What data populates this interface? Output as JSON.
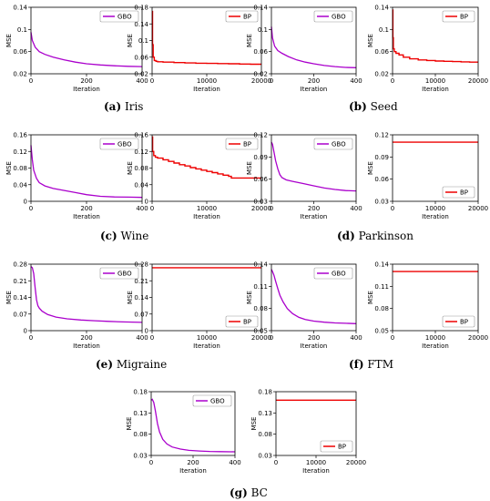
{
  "xlabel": "Iteration",
  "ylabel": "MSE",
  "colors": {
    "GBO": "#aa00cc",
    "BP": "#ee0000"
  },
  "captions": [
    {
      "letter": "(a)",
      "name": "Iris"
    },
    {
      "letter": "(b)",
      "name": "Seed"
    },
    {
      "letter": "(c)",
      "name": "Wine"
    },
    {
      "letter": "(d)",
      "name": "Parkinson"
    },
    {
      "letter": "(e)",
      "name": "Migraine"
    },
    {
      "letter": "(f)",
      "name": "FTM"
    },
    {
      "letter": "(g)",
      "name": "BC"
    }
  ],
  "chart_data": [
    {
      "type": "line",
      "dataset": "Iris",
      "legend_pos": "top-right",
      "xlim": [
        0,
        400
      ],
      "ylim": [
        0.02,
        0.14
      ],
      "xticks": [
        0,
        200,
        400
      ],
      "yticks": [
        "0.02",
        "0.06",
        "0.1",
        "0.14"
      ],
      "series": [
        {
          "name": "GBO",
          "x": [
            0,
            5,
            15,
            30,
            50,
            80,
            120,
            160,
            200,
            250,
            300,
            350,
            400
          ],
          "y": [
            0.095,
            0.08,
            0.068,
            0.06,
            0.055,
            0.05,
            0.045,
            0.041,
            0.038,
            0.036,
            0.0345,
            0.0335,
            0.033
          ]
        }
      ]
    },
    {
      "type": "line",
      "dataset": "Iris",
      "legend_pos": "top-right",
      "xlim": [
        0,
        20000
      ],
      "ylim": [
        0.02,
        0.18
      ],
      "xticks": [
        0,
        10000,
        20000
      ],
      "yticks": [
        "0.02",
        "0.06",
        "0.1",
        "0.14",
        "0.18"
      ],
      "series": [
        {
          "name": "BP",
          "x": [
            0,
            80,
            200,
            400,
            700,
            1000,
            2000,
            4000,
            6000,
            8000,
            10000,
            12000,
            14000,
            16000,
            18000,
            20000
          ],
          "y": [
            0.17,
            0.09,
            0.06,
            0.052,
            0.05,
            0.049,
            0.048,
            0.047,
            0.046,
            0.0455,
            0.045,
            0.0445,
            0.044,
            0.0435,
            0.043,
            0.043
          ]
        }
      ]
    },
    {
      "type": "line",
      "dataset": "Seed",
      "legend_pos": "top-right",
      "xlim": [
        0,
        400
      ],
      "ylim": [
        0.02,
        0.14
      ],
      "xticks": [
        0,
        200,
        400
      ],
      "yticks": [
        "0.02",
        "0.06",
        "0.1",
        "0.14"
      ],
      "series": [
        {
          "name": "GBO",
          "x": [
            0,
            5,
            15,
            30,
            50,
            80,
            120,
            160,
            200,
            250,
            300,
            350,
            400
          ],
          "y": [
            0.105,
            0.085,
            0.07,
            0.062,
            0.057,
            0.051,
            0.045,
            0.041,
            0.038,
            0.035,
            0.033,
            0.0315,
            0.031
          ]
        }
      ]
    },
    {
      "type": "line",
      "dataset": "Seed",
      "legend_pos": "top-right",
      "xlim": [
        0,
        20000
      ],
      "ylim": [
        0.02,
        0.14
      ],
      "xticks": [
        0,
        10000,
        20000
      ],
      "yticks": [
        "0.02",
        "0.06",
        "0.1",
        "0.14"
      ],
      "series": [
        {
          "name": "BP",
          "x": [
            0,
            80,
            200,
            400,
            800,
            1500,
            2500,
            4000,
            6000,
            8000,
            10000,
            12000,
            14000,
            16000,
            18000,
            20000
          ],
          "y": [
            0.135,
            0.085,
            0.065,
            0.06,
            0.057,
            0.054,
            0.05,
            0.047,
            0.045,
            0.044,
            0.043,
            0.0425,
            0.042,
            0.0415,
            0.041,
            0.041
          ]
        }
      ]
    },
    {
      "type": "line",
      "dataset": "Wine",
      "legend_pos": "top-right",
      "xlim": [
        0,
        400
      ],
      "ylim": [
        0,
        0.16
      ],
      "xticks": [
        0,
        200,
        400
      ],
      "yticks": [
        "0",
        "0.04",
        "0.08",
        "0.12",
        "0.16"
      ],
      "series": [
        {
          "name": "GBO",
          "x": [
            0,
            5,
            10,
            20,
            30,
            50,
            80,
            120,
            160,
            200,
            250,
            300,
            350,
            400
          ],
          "y": [
            0.135,
            0.1,
            0.075,
            0.055,
            0.045,
            0.037,
            0.031,
            0.026,
            0.021,
            0.016,
            0.012,
            0.0105,
            0.01,
            0.0095
          ]
        }
      ]
    },
    {
      "type": "line",
      "dataset": "Wine",
      "legend_pos": "top-right",
      "xlim": [
        0,
        20000
      ],
      "ylim": [
        0,
        0.16
      ],
      "xticks": [
        0,
        10000,
        20000
      ],
      "yticks": [
        "0",
        "0.04",
        "0.08",
        "0.12",
        "0.16"
      ],
      "series": [
        {
          "name": "BP",
          "x": [
            0,
            100,
            300,
            600,
            1000,
            2000,
            3000,
            4000,
            5000,
            6000,
            7000,
            8000,
            9000,
            10000,
            11000,
            12000,
            13000,
            14000,
            14500,
            16000,
            18000,
            20000
          ],
          "y": [
            0.155,
            0.12,
            0.11,
            0.106,
            0.104,
            0.1,
            0.096,
            0.092,
            0.088,
            0.085,
            0.081,
            0.078,
            0.075,
            0.072,
            0.069,
            0.066,
            0.063,
            0.06,
            0.056,
            0.056,
            0.056,
            0.056
          ]
        }
      ]
    },
    {
      "type": "line",
      "dataset": "Parkinson",
      "legend_pos": "top-right",
      "xlim": [
        0,
        400
      ],
      "ylim": [
        0.03,
        0.12
      ],
      "xticks": [
        0,
        200,
        400
      ],
      "yticks": [
        "0.03",
        "0.06",
        "0.09",
        "0.12"
      ],
      "series": [
        {
          "name": "GBO",
          "x": [
            0,
            5,
            12,
            20,
            30,
            40,
            50,
            70,
            100,
            150,
            200,
            250,
            300,
            350,
            400
          ],
          "y": [
            0.11,
            0.107,
            0.097,
            0.085,
            0.074,
            0.066,
            0.062,
            0.059,
            0.057,
            0.054,
            0.051,
            0.048,
            0.046,
            0.0445,
            0.044
          ]
        }
      ]
    },
    {
      "type": "line",
      "dataset": "Parkinson",
      "legend_pos": "bottom-right",
      "xlim": [
        0,
        20000
      ],
      "ylim": [
        0.03,
        0.12
      ],
      "xticks": [
        0,
        10000,
        20000
      ],
      "yticks": [
        "0.03",
        "0.06",
        "0.09",
        "0.12"
      ],
      "series": [
        {
          "name": "BP",
          "x": [
            0,
            20000
          ],
          "y": [
            0.11,
            0.11
          ]
        }
      ]
    },
    {
      "type": "line",
      "dataset": "Migraine",
      "legend_pos": "top-right",
      "xlim": [
        0,
        400
      ],
      "ylim": [
        0,
        0.28
      ],
      "xticks": [
        0,
        200,
        400
      ],
      "yticks": [
        "0",
        "0.07",
        "0.14",
        "0.21",
        "0.28"
      ],
      "series": [
        {
          "name": "GBO",
          "x": [
            0,
            5,
            10,
            15,
            20,
            25,
            30,
            40,
            60,
            90,
            130,
            180,
            230,
            280,
            330,
            400
          ],
          "y": [
            0.27,
            0.265,
            0.24,
            0.18,
            0.13,
            0.105,
            0.095,
            0.082,
            0.068,
            0.057,
            0.05,
            0.045,
            0.042,
            0.039,
            0.037,
            0.035
          ]
        }
      ]
    },
    {
      "type": "line",
      "dataset": "Migraine",
      "legend_pos": "bottom-right",
      "xlim": [
        0,
        20000
      ],
      "ylim": [
        0,
        0.28
      ],
      "xticks": [
        0,
        10000,
        20000
      ],
      "yticks": [
        "0",
        "0.07",
        "0.14",
        "0.21",
        "0.28"
      ],
      "series": [
        {
          "name": "BP",
          "x": [
            0,
            20000
          ],
          "y": [
            0.265,
            0.265
          ]
        }
      ]
    },
    {
      "type": "line",
      "dataset": "FTM",
      "legend_pos": "top-right",
      "xlim": [
        0,
        400
      ],
      "ylim": [
        0.05,
        0.14
      ],
      "xticks": [
        0,
        200,
        400
      ],
      "yticks": [
        "0.05",
        "0.08",
        "0.11",
        "0.14"
      ],
      "series": [
        {
          "name": "GBO",
          "x": [
            0,
            5,
            12,
            20,
            30,
            40,
            55,
            75,
            100,
            130,
            160,
            200,
            250,
            300,
            350,
            400
          ],
          "y": [
            0.133,
            0.13,
            0.125,
            0.117,
            0.107,
            0.098,
            0.089,
            0.08,
            0.073,
            0.068,
            0.065,
            0.063,
            0.0615,
            0.0605,
            0.06,
            0.0595
          ]
        }
      ]
    },
    {
      "type": "line",
      "dataset": "FTM",
      "legend_pos": "bottom-right",
      "xlim": [
        0,
        20000
      ],
      "ylim": [
        0.05,
        0.14
      ],
      "xticks": [
        0,
        10000,
        20000
      ],
      "yticks": [
        "0.05",
        "0.08",
        "0.11",
        "0.14"
      ],
      "series": [
        {
          "name": "BP",
          "x": [
            0,
            20000
          ],
          "y": [
            0.13,
            0.13
          ]
        }
      ]
    },
    {
      "type": "line",
      "dataset": "BC",
      "legend_pos": "top-right",
      "xlim": [
        0,
        400
      ],
      "ylim": [
        0.03,
        0.18
      ],
      "xticks": [
        0,
        200,
        400
      ],
      "yticks": [
        "0.03",
        "0.08",
        "0.13",
        "0.18"
      ],
      "series": [
        {
          "name": "GBO",
          "x": [
            0,
            5,
            12,
            20,
            30,
            40,
            55,
            75,
            100,
            140,
            180,
            230,
            280,
            330,
            400
          ],
          "y": [
            0.16,
            0.162,
            0.155,
            0.135,
            0.105,
            0.085,
            0.068,
            0.057,
            0.05,
            0.045,
            0.042,
            0.0405,
            0.0395,
            0.039,
            0.0385
          ]
        }
      ]
    },
    {
      "type": "line",
      "dataset": "BC",
      "legend_pos": "bottom-right",
      "xlim": [
        0,
        20000
      ],
      "ylim": [
        0.03,
        0.18
      ],
      "xticks": [
        0,
        10000,
        20000
      ],
      "yticks": [
        "0.03",
        "0.08",
        "0.13",
        "0.18"
      ],
      "series": [
        {
          "name": "BP",
          "x": [
            0,
            20000
          ],
          "y": [
            0.16,
            0.16
          ]
        }
      ]
    }
  ]
}
